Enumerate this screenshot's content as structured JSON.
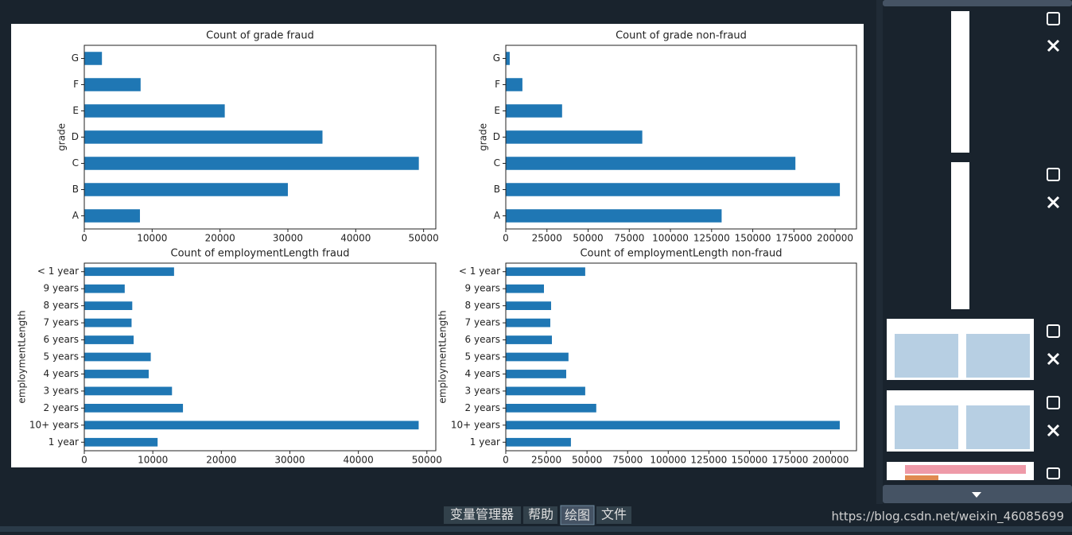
{
  "chart_data": [
    {
      "type": "barh",
      "title": "Count of grade fraud",
      "ylabel": "grade",
      "color": "#1f77b4",
      "categories": [
        "A",
        "B",
        "C",
        "D",
        "E",
        "F",
        "G"
      ],
      "values": [
        8200,
        30000,
        49300,
        35100,
        20700,
        8300,
        2600
      ],
      "xlim": [
        0,
        51800
      ],
      "xticks": [
        0,
        10000,
        20000,
        30000,
        40000,
        50000
      ]
    },
    {
      "type": "barh",
      "title": "Count of grade non-fraud",
      "ylabel": "grade",
      "color": "#1f77b4",
      "categories": [
        "A",
        "B",
        "C",
        "D",
        "E",
        "F",
        "G"
      ],
      "values": [
        131100,
        202900,
        175900,
        82900,
        34200,
        10100,
        2400
      ],
      "xlim": [
        0,
        213000
      ],
      "xticks": [
        0,
        25000,
        50000,
        75000,
        100000,
        125000,
        150000,
        175000,
        200000
      ]
    },
    {
      "type": "barh",
      "title": "Count of employmentLength fraud",
      "ylabel": "employmentLength",
      "color": "#1f77b4",
      "categories": [
        "1 year",
        "10+ years",
        "2 years",
        "3 years",
        "4 years",
        "5 years",
        "6 years",
        "7 years",
        "8 years",
        "9 years",
        "< 1 year"
      ],
      "values": [
        10700,
        48800,
        14400,
        12800,
        9400,
        9700,
        7200,
        6900,
        7000,
        5900,
        13100
      ],
      "xlim": [
        0,
        51300
      ],
      "xticks": [
        0,
        10000,
        20000,
        30000,
        40000,
        50000
      ]
    },
    {
      "type": "barh",
      "title": "Count of employmentLength non-fraud",
      "ylabel": "employmentLength",
      "color": "#1f77b4",
      "categories": [
        "1 year",
        "10+ years",
        "2 years",
        "3 years",
        "4 years",
        "5 years",
        "6 years",
        "7 years",
        "8 years",
        "9 years",
        "< 1 year"
      ],
      "values": [
        40100,
        205600,
        55700,
        48900,
        37200,
        38600,
        28400,
        27400,
        27900,
        23500,
        48900
      ],
      "xlim": [
        0,
        215900
      ],
      "xticks": [
        0,
        25000,
        50000,
        75000,
        100000,
        125000,
        150000,
        175000,
        200000
      ]
    }
  ],
  "tabs": [
    "变量管理器",
    "帮助",
    "绘图",
    "文件"
  ],
  "url": "https://blog.csdn.net/weixin_46085699"
}
